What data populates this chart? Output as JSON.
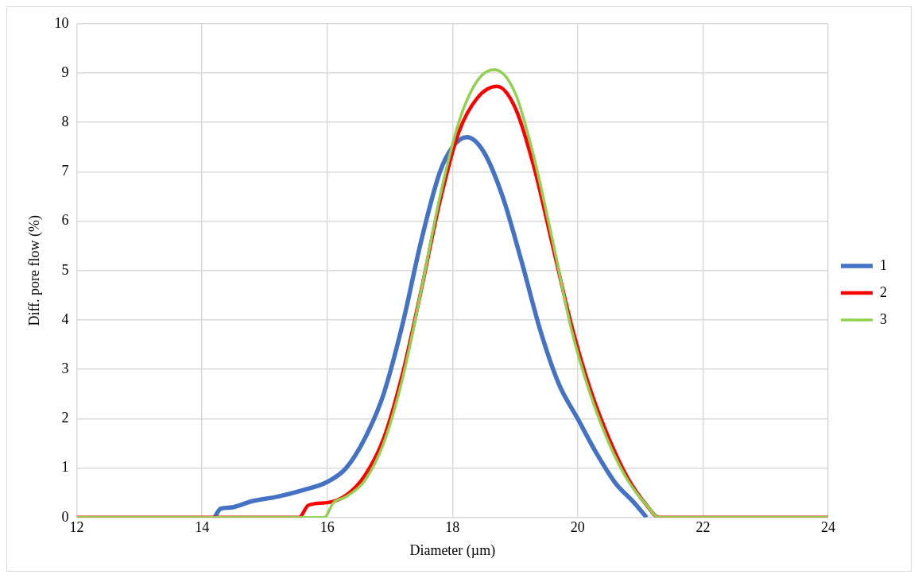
{
  "chart_data": {
    "type": "line",
    "xlabel": "Diameter (µm)",
    "ylabel": "Diff. pore flow (%)",
    "xlim": [
      12,
      24
    ],
    "xticks": [
      12,
      14,
      16,
      18,
      20,
      22,
      24
    ],
    "ylim": [
      0,
      10
    ],
    "yticks": [
      0,
      1,
      2,
      3,
      4,
      5,
      6,
      7,
      8,
      9,
      10
    ],
    "grid": true,
    "legend": "right",
    "marker": "none",
    "line_style": "solid",
    "series": [
      {
        "name": "1",
        "color": "#4472c4",
        "x": [
          14.2,
          14.3,
          14.45,
          14.8,
          15.2,
          15.6,
          16,
          16.3,
          16.6,
          16.9,
          17.2,
          17.5,
          17.8,
          18,
          18.23,
          18.5,
          18.8,
          19.1,
          19.4,
          19.7,
          20,
          20.3,
          20.6,
          20.9,
          21.1
        ],
        "values": [
          0,
          0.18,
          0.2,
          0.33,
          0.42,
          0.55,
          0.72,
          1,
          1.6,
          2.5,
          3.9,
          5.6,
          7,
          7.5,
          7.7,
          7.4,
          6.5,
          5.2,
          3.8,
          2.7,
          2,
          1.3,
          0.7,
          0.3,
          0
        ]
      },
      {
        "name": "2",
        "color": "#ff0000",
        "x": [
          12,
          15.55,
          15.7,
          16,
          16.3,
          16.6,
          16.9,
          17.2,
          17.5,
          17.8,
          18.1,
          18.4,
          18.71,
          19,
          19.3,
          19.6,
          19.9,
          20.2,
          20.5,
          20.8,
          21.1,
          21.3,
          24
        ],
        "values": [
          0,
          0,
          0.25,
          0.3,
          0.45,
          0.85,
          1.6,
          2.9,
          4.6,
          6.4,
          7.8,
          8.5,
          8.73,
          8.3,
          7.1,
          5.5,
          3.9,
          2.6,
          1.6,
          0.8,
          0.25,
          0,
          0
        ]
      },
      {
        "name": "3",
        "color": "#92d050",
        "x": [
          12,
          15.95,
          16.1,
          16.3,
          16.6,
          16.9,
          17.2,
          17.5,
          17.8,
          18.1,
          18.4,
          18.67,
          19,
          19.3,
          19.6,
          19.9,
          20.2,
          20.5,
          20.8,
          21.1,
          21.3,
          24
        ],
        "values": [
          0,
          0,
          0.3,
          0.42,
          0.75,
          1.5,
          2.8,
          4.6,
          6.5,
          8,
          8.85,
          9.07,
          8.6,
          7.3,
          5.6,
          3.8,
          2.5,
          1.5,
          0.75,
          0.25,
          0,
          0
        ]
      }
    ]
  }
}
